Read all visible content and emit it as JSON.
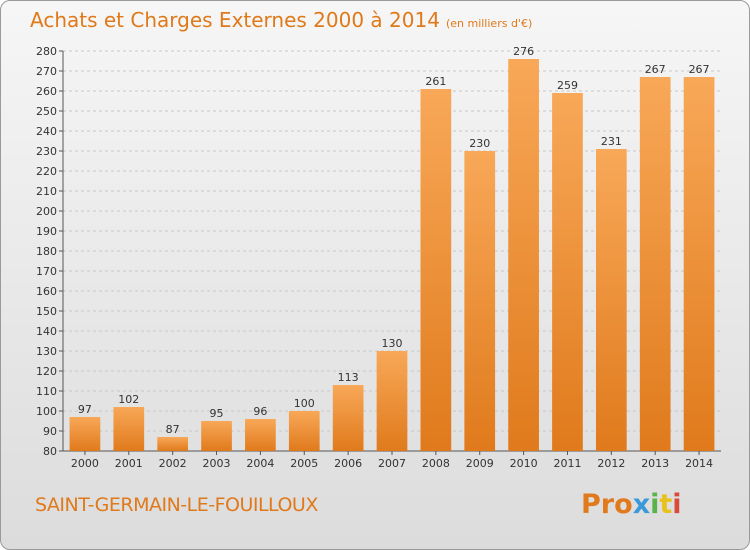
{
  "header": {
    "title": "Achats et Charges Externes 2000 à 2014",
    "unit": "(en milliers d'€)"
  },
  "footer": {
    "commune": "SAINT-GERMAIN-LE-FOUILLOUX",
    "logo": "Proxiti"
  },
  "colors": {
    "accent": "#e0791a",
    "bar_light": "#f8a858",
    "bar_dark": "#e07a1c",
    "grid": "#c8c8c8",
    "logo_letters": [
      "#e07a1c",
      "#e07a1c",
      "#e07a1c",
      "#3a9ad9",
      "#5ab34a",
      "#e8c21a",
      "#d94a3a"
    ]
  },
  "chart_data": {
    "type": "bar",
    "title": "Achats et Charges Externes 2000 à 2014",
    "subtitle": "(en milliers d'€)",
    "xlabel": "",
    "ylabel": "",
    "categories": [
      "2000",
      "2001",
      "2002",
      "2003",
      "2004",
      "2005",
      "2006",
      "2007",
      "2008",
      "2009",
      "2010",
      "2011",
      "2012",
      "2013",
      "2014"
    ],
    "values": [
      97,
      102,
      87,
      95,
      96,
      100,
      113,
      130,
      261,
      230,
      276,
      259,
      231,
      267,
      267
    ],
    "ylim": [
      80,
      280
    ],
    "yticks": [
      80,
      90,
      100,
      110,
      120,
      130,
      140,
      150,
      160,
      170,
      180,
      190,
      200,
      210,
      220,
      230,
      240,
      250,
      260,
      270,
      280
    ],
    "grid": true,
    "data_labels": true
  }
}
